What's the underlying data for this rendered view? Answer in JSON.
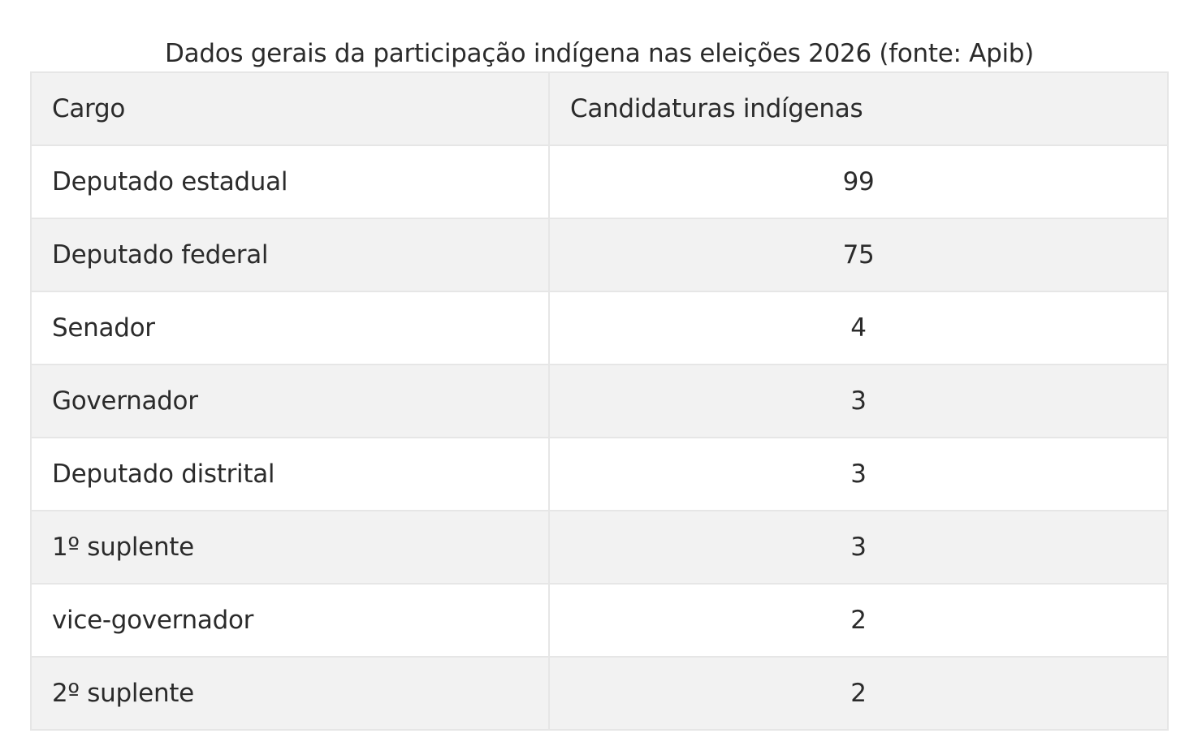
{
  "caption": "Dados gerais da participação indígena nas eleições 2026 (fonte: Apib)",
  "table": {
    "headers": [
      "Cargo",
      "Candidaturas indígenas"
    ],
    "rows": [
      {
        "cargo": "Deputado estadual",
        "candidaturas": "99"
      },
      {
        "cargo": "Deputado federal",
        "candidaturas": "75"
      },
      {
        "cargo": "Senador",
        "candidaturas": "4"
      },
      {
        "cargo": "Governador",
        "candidaturas": "3"
      },
      {
        "cargo": "Deputado distrital",
        "candidaturas": "3"
      },
      {
        "cargo": "1º suplente",
        "candidaturas": "3"
      },
      {
        "cargo": "vice-governador",
        "candidaturas": "2"
      },
      {
        "cargo": "2º suplente",
        "candidaturas": "2"
      }
    ]
  },
  "colors": {
    "header_background": "#f2f2f2",
    "stripe_background": "#f2f2f2",
    "border": "#e6e6e6",
    "text": "#2b2b2b"
  }
}
